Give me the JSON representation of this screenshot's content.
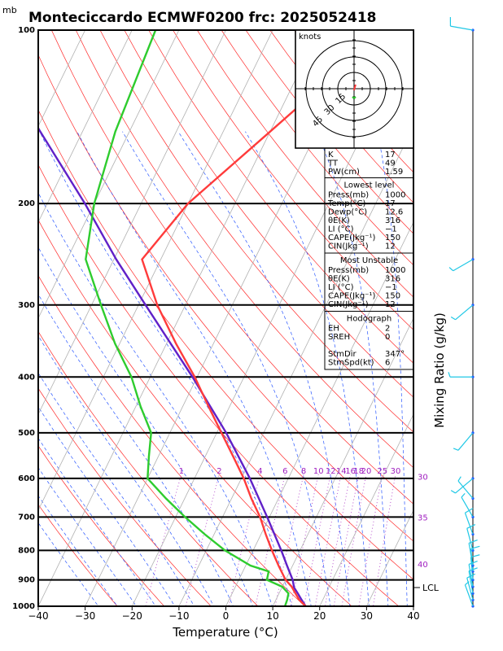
{
  "header": {
    "unit_top": "mb",
    "title": "Monteciccardo ECMWF0200  frc: 2025052418"
  },
  "chart_data": {
    "type": "line",
    "title": "Monteciccardo ECMWF0200  frc: 2025052418",
    "xlabel": "Temperature (°C)",
    "ylabel": "mb",
    "right_label": "Mixing Ratio (g/kg)",
    "x_ticks": [
      "−40",
      "−30",
      "−20",
      "−10",
      "0",
      "10",
      "20",
      "30",
      "40"
    ],
    "xlim": [
      -40,
      40
    ],
    "ylim": [
      1000,
      100
    ],
    "y_scale": "log",
    "p_ticks": [
      "1000",
      "900",
      "800",
      "700",
      "600",
      "500",
      "400",
      "300",
      "200",
      "100"
    ],
    "mixing_ratio_labels": [
      "1",
      "2",
      "4",
      "6",
      "8",
      "10",
      "12",
      "14",
      "16",
      "18",
      "20",
      "25",
      "30"
    ],
    "theta_labels": [
      {
        "text": "30",
        "p": 595
      },
      {
        "text": "35",
        "p": 700
      },
      {
        "text": "40",
        "p": 845
      }
    ],
    "lcl_label": "LCL",
    "lcl_p": 928,
    "series": [
      {
        "key": "temperature",
        "color": "#ff3b3b",
        "p": [
          1000,
          975,
          950,
          925,
          900,
          850,
          800,
          750,
          700,
          650,
          600,
          550,
          500,
          450,
          400,
          350,
          300,
          250,
          200,
          150,
          100
        ],
        "t": [
          17,
          15,
          13.5,
          12,
          10,
          7,
          4,
          1,
          -2,
          -5.8,
          -9.5,
          -14,
          -19,
          -24.5,
          -30.5,
          -38,
          -46,
          -54,
          -50,
          -40,
          -26
        ]
      },
      {
        "key": "dewpoint",
        "color": "#2ecc2e",
        "p": [
          1000,
          975,
          950,
          925,
          900,
          870,
          850,
          800,
          750,
          700,
          650,
          600,
          550,
          500,
          450,
          400,
          350,
          300,
          250,
          200,
          150,
          100
        ],
        "td": [
          12.6,
          12.4,
          12,
          10,
          6,
          5.5,
          1,
          -6,
          -12,
          -18,
          -24,
          -30,
          -32,
          -34,
          -39,
          -44,
          -51,
          -58,
          -66,
          -70,
          -73,
          -75
        ]
      },
      {
        "key": "parcel",
        "color": "#6020c8",
        "p": [
          1000,
          975,
          950,
          928,
          900,
          850,
          800,
          700,
          600,
          500,
          400,
          300,
          250,
          200,
          150,
          120
        ],
        "t": [
          17,
          15.5,
          14,
          12.6,
          11.5,
          8.8,
          6,
          -0.5,
          -8.2,
          -18,
          -31,
          -48.5,
          -59.5,
          -72,
          -89,
          -102
        ]
      }
    ],
    "wind_barbs": [
      {
        "p": 1000,
        "speed_kt": 5,
        "dir": 340
      },
      {
        "p": 975,
        "speed_kt": 10,
        "dir": 345
      },
      {
        "p": 950,
        "speed_kt": 10,
        "dir": 350
      },
      {
        "p": 925,
        "speed_kt": 10,
        "dir": 350
      },
      {
        "p": 900,
        "speed_kt": 10,
        "dir": 355
      },
      {
        "p": 870,
        "speed_kt": 10,
        "dir": 355
      },
      {
        "p": 850,
        "speed_kt": 10,
        "dir": 350
      },
      {
        "p": 800,
        "speed_kt": 10,
        "dir": 345
      },
      {
        "p": 750,
        "speed_kt": 10,
        "dir": 340
      },
      {
        "p": 700,
        "speed_kt": 5,
        "dir": 330
      },
      {
        "p": 650,
        "speed_kt": 5,
        "dir": 320
      },
      {
        "p": 600,
        "speed_kt": 5,
        "dir": 230
      },
      {
        "p": 500,
        "speed_kt": 5,
        "dir": 220
      },
      {
        "p": 400,
        "speed_kt": 5,
        "dir": 270
      },
      {
        "p": 300,
        "speed_kt": 5,
        "dir": 230
      },
      {
        "p": 250,
        "speed_kt": 5,
        "dir": 240
      },
      {
        "p": 100,
        "speed_kt": 10,
        "dir": 280
      }
    ],
    "hodograph": {
      "unit_label": "knots",
      "ring_labels": [
        "15",
        "30",
        "45"
      ]
    },
    "indices": {
      "top": [
        {
          "label": "K",
          "value": "17"
        },
        {
          "label": "TT",
          "value": "49"
        },
        {
          "label": "PW(cm)",
          "value": "1.59"
        }
      ],
      "lowest_level": {
        "header": "Lowest level",
        "rows": [
          {
            "label": "Press(mb)",
            "value": "1000"
          },
          {
            "label": "Temp(°C)",
            "value": "17"
          },
          {
            "label": "Dewp(°C)",
            "value": "12.6"
          },
          {
            "label": "θE(K)",
            "value": "316"
          },
          {
            "label": "LI (°C)",
            "value": "−1"
          },
          {
            "label": "CAPE(Jkg⁻¹)",
            "value": "150"
          },
          {
            "label": "CIN(Jkg⁻¹)",
            "value": "12"
          }
        ]
      },
      "most_unstable": {
        "header": "Most Unstable",
        "rows": [
          {
            "label": "Press(mb)",
            "value": "1000"
          },
          {
            "label": "θE(K)",
            "value": "316"
          },
          {
            "label": "LI (°C)",
            "value": "−1"
          },
          {
            "label": "CAPE(Jkg⁻¹)",
            "value": "150"
          },
          {
            "label": "CIN(Jkg⁻¹)",
            "value": "12"
          }
        ]
      },
      "hodo_block": {
        "header": "Hodograph",
        "rows": [
          {
            "label": "EH",
            "value": "2"
          },
          {
            "label": "SREH",
            "value": "0"
          },
          {
            "label": "",
            "value": ""
          },
          {
            "label": "StmDir",
            "value": "347°"
          },
          {
            "label": "StmSpd(kt)",
            "value": "6"
          }
        ]
      }
    }
  }
}
